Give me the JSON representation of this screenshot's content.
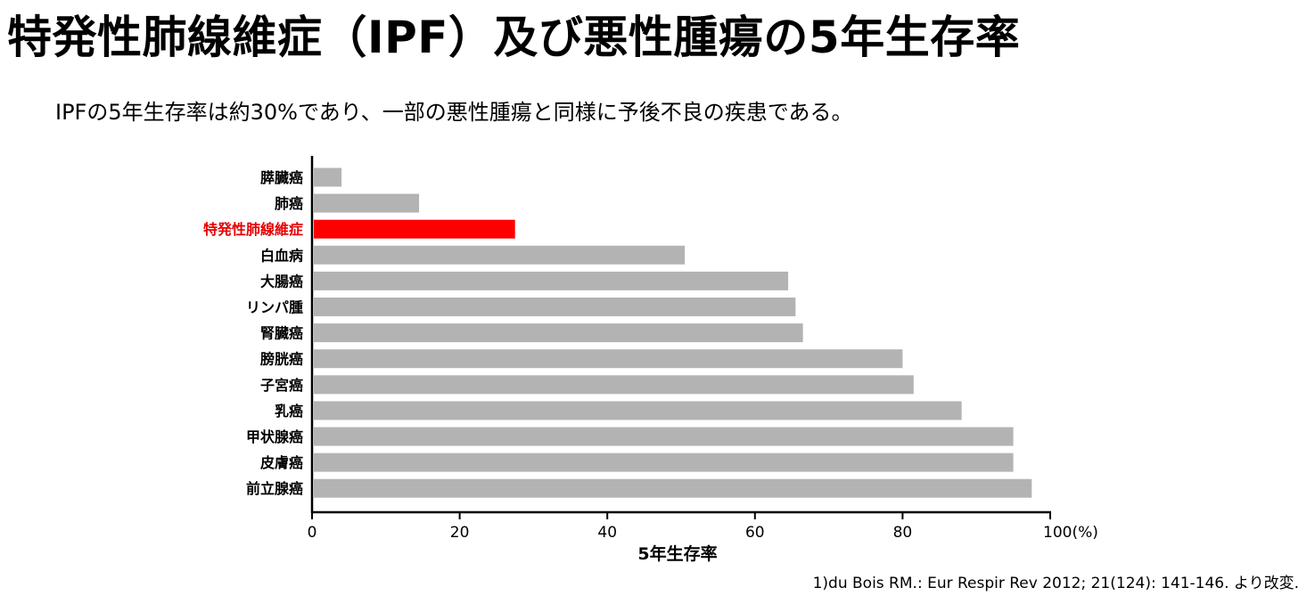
{
  "title": "特発性肺線維症（IPF）及び悪性腫瘍の5年生存率",
  "subtitle": "IPFの5年生存率は約30%であり、一部の悪性腫瘍と同様に予後不良の疾患である。",
  "citation": "1)du Bois RM.: Eur Respir Rev 2012; 21(124): 141-146. より改変.",
  "colors": {
    "default_bar": "#b3b3b3",
    "highlight_bar": "#ff0000",
    "highlight_label": "#e60000",
    "axis": "#000000"
  },
  "chart_data": {
    "type": "bar",
    "orientation": "horizontal",
    "categories": [
      "膵臓癌",
      "肺癌",
      "特発性肺線維症",
      "白血病",
      "大腸癌",
      "リンパ腫",
      "腎臓癌",
      "膀胱癌",
      "子宮癌",
      "乳癌",
      "甲状腺癌",
      "皮膚癌",
      "前立腺癌"
    ],
    "values": [
      4,
      14.5,
      27.5,
      50.5,
      64.5,
      65.5,
      66.5,
      80,
      81.5,
      88,
      95,
      95,
      97.5
    ],
    "highlight_index": 2,
    "xlabel": "5年生存率",
    "xlim": [
      0,
      100
    ],
    "xticks": [
      "0",
      "20",
      "40",
      "60",
      "80",
      "100(%)"
    ],
    "grid": false,
    "legend": "none"
  }
}
